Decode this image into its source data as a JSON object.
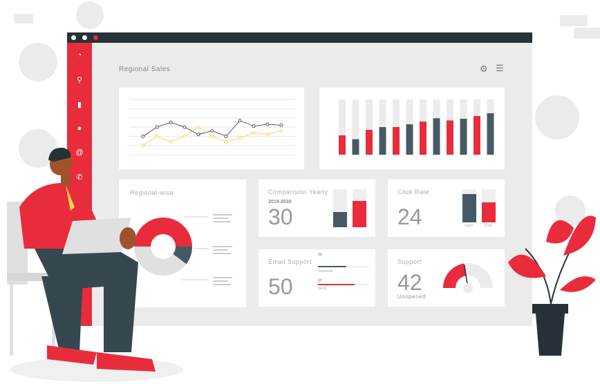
{
  "header": {
    "title": "Regional Sales",
    "settings_icon": "gear-icon",
    "menu_icon": "hamburger-icon"
  },
  "sidebar": {
    "icons": [
      "dashboard-icon",
      "search-icon",
      "bar-chart-icon",
      "chat-icon",
      "at-icon",
      "phone-icon",
      "mail-icon"
    ]
  },
  "colors": {
    "accent": "#e82c3c",
    "dark": "#455a64",
    "yellow": "#ffd54f",
    "background": "#ebebeb"
  },
  "chart_data": [
    {
      "type": "line",
      "series": [
        {
          "values": [
            2,
            3,
            3.5,
            3,
            2.2,
            2.6,
            2,
            3.7,
            3.1,
            3.3,
            3.2
          ]
        },
        {
          "values": [
            1,
            2,
            1.4,
            2,
            3,
            2,
            1.4,
            1.8,
            2.4,
            2.2,
            2.6
          ]
        }
      ],
      "ylim": [
        0,
        6
      ],
      "grid": true
    },
    {
      "type": "bar",
      "values": [
        0.35,
        0.28,
        0.45,
        0.5,
        0.5,
        0.55,
        0.6,
        0.66,
        0.62,
        0.65,
        0.7,
        0.75
      ],
      "ylim": [
        0,
        1
      ]
    }
  ],
  "regional": {
    "title": "Regional-wise"
  },
  "comparison": {
    "title": "Comparision Yearly",
    "period": "2019-2020",
    "value": "30",
    "bars": [
      0.4,
      0.7
    ]
  },
  "click_rate": {
    "title": "Click Rate",
    "value": "24",
    "bars": [
      {
        "label": "Open",
        "value": 0.85
      },
      {
        "label": "Click",
        "value": 0.6
      }
    ]
  },
  "email": {
    "title": "Email Support",
    "value": "50",
    "delivered_count": "23",
    "delivered_label": "Delivered",
    "delivered_fraction": 0.55,
    "send_count": "27",
    "send_label": "Send",
    "send_fraction": 0.72
  },
  "support": {
    "title": "Support",
    "value": "42",
    "subtitle": "Unopened",
    "gauge": 0.45
  }
}
